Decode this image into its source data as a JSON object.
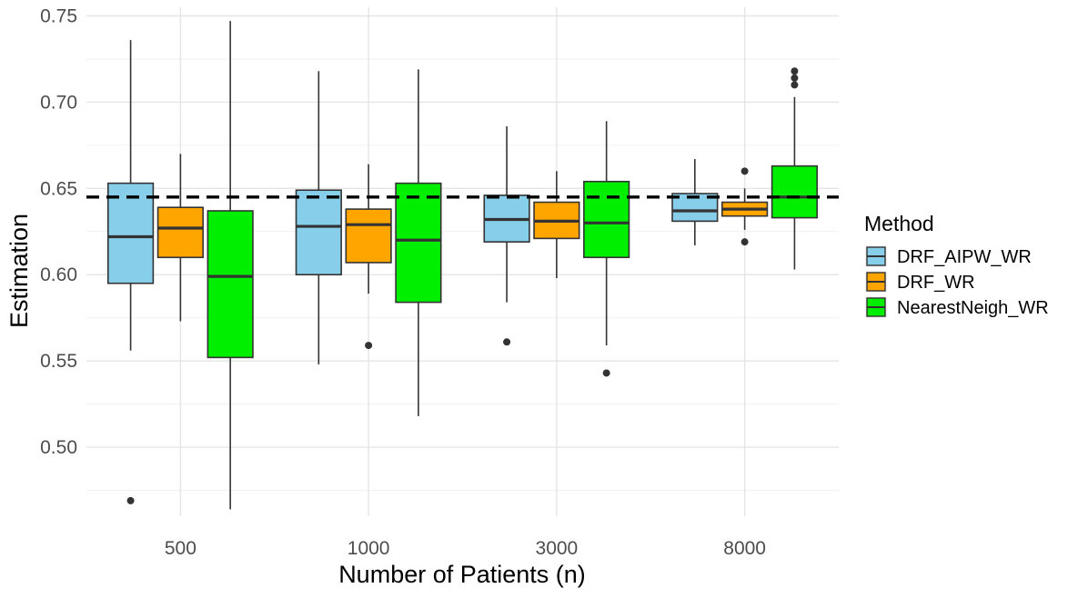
{
  "chart_data": {
    "type": "boxplot",
    "title": "",
    "xlabel": "Number of Patients (n)",
    "ylabel": "Estimation",
    "ylim": [
      0.46,
      0.755
    ],
    "yticks": [
      0.5,
      0.55,
      0.6,
      0.65,
      0.7,
      0.75
    ],
    "ytick_labels": [
      "0.50",
      "0.55",
      "0.60",
      "0.65",
      "0.70",
      "0.75"
    ],
    "categories": [
      "500",
      "1000",
      "3000",
      "8000"
    ],
    "reference_line": 0.645,
    "grid": true,
    "legend": {
      "title": "Method",
      "position": "right"
    },
    "series": [
      {
        "name": "DRF_AIPW_WR",
        "color": "#87CEEB",
        "boxes": [
          {
            "whisker_low": 0.556,
            "q1": 0.595,
            "median": 0.622,
            "q3": 0.653,
            "whisker_high": 0.736,
            "outliers": [
              0.469
            ]
          },
          {
            "whisker_low": 0.548,
            "q1": 0.6,
            "median": 0.628,
            "q3": 0.649,
            "whisker_high": 0.718,
            "outliers": []
          },
          {
            "whisker_low": 0.584,
            "q1": 0.619,
            "median": 0.632,
            "q3": 0.646,
            "whisker_high": 0.686,
            "outliers": [
              0.561
            ]
          },
          {
            "whisker_low": 0.617,
            "q1": 0.631,
            "median": 0.637,
            "q3": 0.647,
            "whisker_high": 0.667,
            "outliers": []
          }
        ]
      },
      {
        "name": "DRF_WR",
        "color": "#FFA500",
        "boxes": [
          {
            "whisker_low": 0.573,
            "q1": 0.61,
            "median": 0.627,
            "q3": 0.639,
            "whisker_high": 0.67,
            "outliers": []
          },
          {
            "whisker_low": 0.589,
            "q1": 0.607,
            "median": 0.629,
            "q3": 0.638,
            "whisker_high": 0.664,
            "outliers": [
              0.559
            ]
          },
          {
            "whisker_low": 0.598,
            "q1": 0.621,
            "median": 0.631,
            "q3": 0.642,
            "whisker_high": 0.66,
            "outliers": []
          },
          {
            "whisker_low": 0.626,
            "q1": 0.634,
            "median": 0.638,
            "q3": 0.642,
            "whisker_high": 0.65,
            "outliers": [
              0.66,
              0.619
            ]
          }
        ]
      },
      {
        "name": "NearestNeigh_WR",
        "color": "#00EE00",
        "boxes": [
          {
            "whisker_low": 0.464,
            "q1": 0.552,
            "median": 0.599,
            "q3": 0.637,
            "whisker_high": 0.747,
            "outliers": []
          },
          {
            "whisker_low": 0.518,
            "q1": 0.584,
            "median": 0.62,
            "q3": 0.653,
            "whisker_high": 0.719,
            "outliers": []
          },
          {
            "whisker_low": 0.559,
            "q1": 0.61,
            "median": 0.63,
            "q3": 0.654,
            "whisker_high": 0.689,
            "outliers": [
              0.543
            ]
          },
          {
            "whisker_low": 0.603,
            "q1": 0.633,
            "median": 0.645,
            "q3": 0.663,
            "whisker_high": 0.703,
            "outliers": [
              0.718,
              0.714,
              0.71
            ]
          }
        ]
      }
    ]
  }
}
